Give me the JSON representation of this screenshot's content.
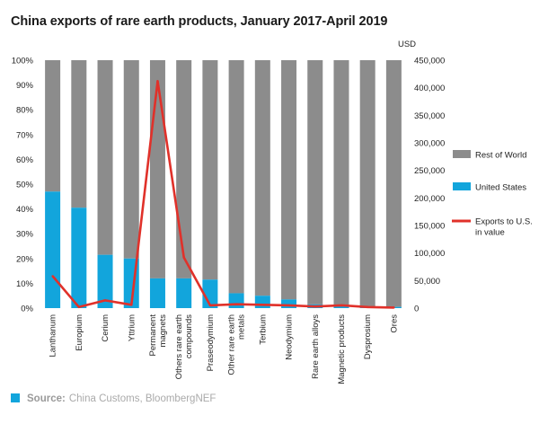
{
  "chart_data": {
    "type": "bar",
    "stacked_percent": true,
    "title": "China exports of rare earth products, January 2017-April 2019",
    "categories": [
      "Lanthanum",
      "Europium",
      "Cerium",
      "Yttrium",
      "Permanent magnets",
      "Others rare earth compounds",
      "Praseodymium",
      "Other rare earth metals",
      "Terbium",
      "Neodymium",
      "Rare earth alloys",
      "Magnetic products",
      "Dysprosium",
      "Ores"
    ],
    "category_label_lines": [
      [
        "Lanthanum"
      ],
      [
        "Europium"
      ],
      [
        "Cerium"
      ],
      [
        "Yttrium"
      ],
      [
        "Permanent",
        "magnets"
      ],
      [
        "Others rare earth",
        "compounds"
      ],
      [
        "Praseodymium"
      ],
      [
        "Other rare earth",
        "metals"
      ],
      [
        "Terbium"
      ],
      [
        "Neodymium"
      ],
      [
        "Rare earth alloys"
      ],
      [
        "Magnetic products"
      ],
      [
        "Dysprosium"
      ],
      [
        "Ores"
      ]
    ],
    "series": [
      {
        "name": "United States",
        "axis": "left",
        "color": "#12a5dc",
        "values": [
          47,
          40.5,
          21.5,
          20,
          12,
          12,
          11.5,
          6,
          5,
          3.5,
          1.5,
          1,
          0.5,
          0.5
        ]
      },
      {
        "name": "Rest of World",
        "axis": "left",
        "color": "#8c8c8c",
        "values": [
          53,
          59.5,
          78.5,
          80,
          88,
          88,
          88.5,
          94,
          95,
          96.5,
          98.5,
          99,
          99.5,
          99.5
        ]
      },
      {
        "name": "Exports to U.S. in value",
        "axis": "right",
        "type": "line",
        "color": "#e0312a",
        "values": [
          58000,
          2000,
          14000,
          6000,
          412000,
          92000,
          5000,
          7000,
          6000,
          5000,
          3000,
          5000,
          2000,
          1000
        ]
      }
    ],
    "left_axis": {
      "min": 0,
      "max": 100,
      "ticks": [
        "0%",
        "10%",
        "20%",
        "30%",
        "40%",
        "50%",
        "60%",
        "70%",
        "80%",
        "90%",
        "100%"
      ]
    },
    "right_axis": {
      "label": "USD",
      "min": 0,
      "max": 450000,
      "ticks": [
        "0",
        "50,000",
        "100,000",
        "150,000",
        "200,000",
        "250,000",
        "300,000",
        "350,000",
        "400,000",
        "450,000"
      ]
    },
    "legend": {
      "placement": "right",
      "items": [
        {
          "label_lines": [
            "Rest of World"
          ],
          "kind": "swatch",
          "color": "#8c8c8c"
        },
        {
          "label_lines": [
            "United States"
          ],
          "kind": "swatch",
          "color": "#12a5dc"
        },
        {
          "label_lines": [
            "Exports to U.S.",
            "in value"
          ],
          "kind": "line",
          "color": "#e0312a"
        }
      ]
    },
    "grid": false
  },
  "source": {
    "label": "Source:",
    "text": "China Customs, BloombergNEF",
    "color": "#12a5dc"
  }
}
